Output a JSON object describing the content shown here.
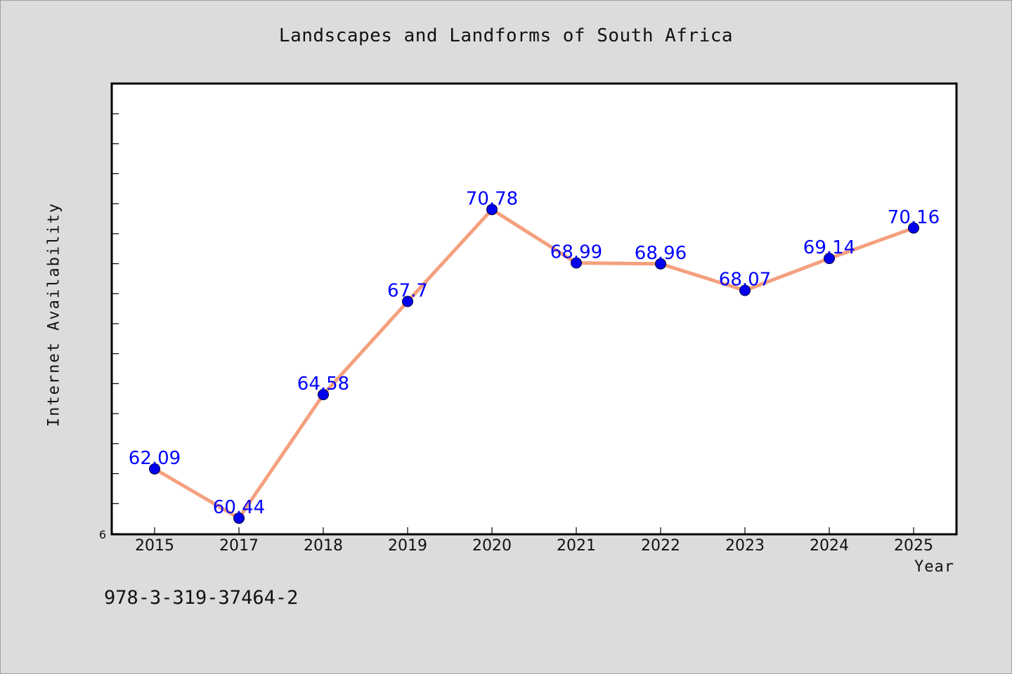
{
  "chart_data": {
    "type": "line",
    "title": "Landscapes and Landforms of South Africa",
    "xlabel": "Year",
    "ylabel": "Internet Availability",
    "categories": [
      "2015",
      "2017",
      "2018",
      "2019",
      "2020",
      "2021",
      "2022",
      "2023",
      "2024",
      "2025"
    ],
    "series": [
      {
        "values": [
          62.09,
          60.44,
          64.58,
          67.7,
          70.78,
          68.99,
          68.96,
          68.07,
          69.14,
          70.16
        ],
        "data_labels": [
          "62.09",
          "60.44",
          "64.58",
          "67.7",
          "70.78",
          "68.99",
          "68.96",
          "68.07",
          "69.14",
          "70.16"
        ],
        "line_color": "#f4a07e",
        "marker_color": "#0000ee",
        "label_color": "#0000ff"
      }
    ],
    "y_tick_labels": [
      "6"
    ],
    "ylim": [
      59.9,
      75.0
    ],
    "grid": false,
    "legend": "none"
  },
  "footer": {
    "isbn": "978-3-319-37464-2"
  },
  "colors": {
    "background": "#dcdcdc",
    "plot_background": "#ffffff",
    "axis": "#000000"
  }
}
